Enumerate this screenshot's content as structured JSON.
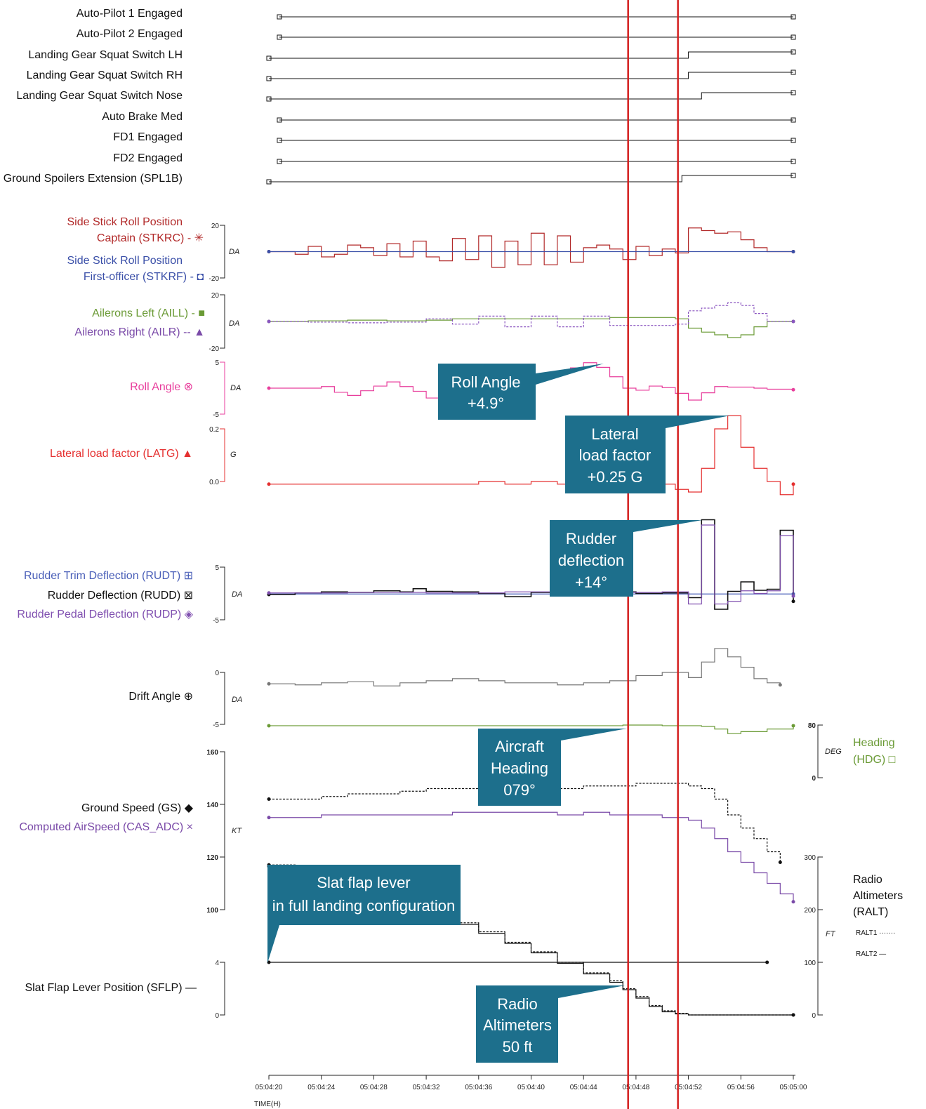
{
  "colors": {
    "black": "#111111",
    "gray": "#777777",
    "captain": "#b22a2a",
    "first_officer": "#3a4fa8",
    "aileron_left": "#6a9a35",
    "aileron_right": "#8a55c0",
    "roll": "#e83e9c",
    "lateral": "#e53030",
    "rudder_trim": "#4a5fb8",
    "rudder_pedal": "#8050b0",
    "heading": "#6a9a35",
    "cas": "#7a4aa8",
    "callout": "#1d6f8c",
    "marker": "#d42020"
  },
  "labels": {
    "ap1": "Auto-Pilot 1 Engaged",
    "ap2": "Auto-Pilot 2 Engaged",
    "lgl": "Landing Gear Squat Switch LH",
    "lgr": "Landing Gear Squat Switch RH",
    "lgn": "Landing Gear Squat Switch Nose",
    "ab": "Auto Brake Med",
    "fd1": "FD1 Engaged",
    "fd2": "FD2 Engaged",
    "spl": "Ground Spoilers Extension (SPL1B)",
    "stkrc_a": "Side Stick Roll Position",
    "stkrc_b": "Captain (STKRC)  - ✳",
    "stkrf_a": "Side Stick Roll Position",
    "stkrf_b": "First-officer (STKRF)  - ◘",
    "aill": "Ailerons Left (AILL)  - ■",
    "ailr": "Ailerons Right (AILR)  -- ▲",
    "roll": "Roll Angle ⊗",
    "latg": "Lateral load factor (LATG)  ▲",
    "rudt": "Rudder Trim Deflection (RUDT) ⊞",
    "rudd": "Rudder Deflection (RUDD) ⊠",
    "rudp": "Rudder Pedal Deflection (RUDP) ◈",
    "drift": "Drift Angle ⊕",
    "gs": "Ground Speed (GS) ◆",
    "cas": "Computed AirSpeed (CAS_ADC) ×",
    "sflp": "Slat Flap Lever Position (SFLP)  —",
    "hdg_a": "Heading",
    "hdg_b": "(HDG) □",
    "ralt_a": "Radio",
    "ralt_b": "Altimeters",
    "ralt_c": "(RALT)",
    "ralt1": "RALT1 ·······",
    "ralt2": "RALT2 —"
  },
  "units": {
    "da": "DA",
    "g": "G",
    "kt": "KT",
    "deg": "DEG",
    "ft": "FT"
  },
  "ticks": {
    "stk_hi": "20",
    "stk_lo": "-20",
    "ail_hi": "20",
    "ail_lo": "-20",
    "roll_hi": "5",
    "roll_lo": "-5",
    "lat_hi": "0.2",
    "lat_lo": "0.0",
    "rud_hi": "5",
    "rud_lo": "-5",
    "drift_hi": "0",
    "drift_lo": "-5",
    "spd_160": "160",
    "spd_140": "140",
    "spd_120": "120",
    "spd_100": "100",
    "sflp_4": "4",
    "sflp_0": "0",
    "hdg_80": "80",
    "hdg_0": "0",
    "ft_300": "300",
    "ft_200": "200",
    "ft_100": "100",
    "ft_0": "0"
  },
  "callouts": {
    "roll": [
      "Roll Angle",
      "+4.9°"
    ],
    "lateral": [
      "Lateral",
      "load factor",
      "+0.25 G"
    ],
    "rudder": [
      "Rudder",
      "deflection",
      "+14°"
    ],
    "heading": [
      "Aircraft",
      "Heading",
      "079°"
    ],
    "slat": [
      "Slat flap lever",
      "in full landing configuration"
    ],
    "ralt": [
      "Radio",
      "Altimeters",
      "50 ft"
    ]
  },
  "chart_data": {
    "type": "line",
    "title": "",
    "xlabel": "TIME(H)",
    "x_ticks": [
      "05:04:20",
      "05:04:24",
      "05:04:28",
      "05:04:32",
      "05:04:36",
      "05:04:40",
      "05:04:44",
      "05:04:48",
      "05:04:52",
      "05:04:56",
      "05:05:00"
    ],
    "x_range_s": [
      0,
      40
    ],
    "event_markers_s": [
      27.4,
      31.2
    ],
    "discretes": [
      {
        "name": "Auto-Pilot 1 Engaged",
        "transition_s": null
      },
      {
        "name": "Auto-Pilot 2 Engaged",
        "transition_s": null
      },
      {
        "name": "Landing Gear Squat Switch LH",
        "transition_s": 32.0
      },
      {
        "name": "Landing Gear Squat Switch RH",
        "transition_s": 32.0
      },
      {
        "name": "Landing Gear Squat Switch Nose",
        "transition_s": 33.0
      },
      {
        "name": "Auto Brake Med",
        "transition_s": null
      },
      {
        "name": "FD1 Engaged",
        "transition_s": null
      },
      {
        "name": "FD2 Engaged",
        "transition_s": null
      },
      {
        "name": "Ground Spoilers Extension (SPL1B)",
        "transition_s": 31.5
      }
    ],
    "series": [
      {
        "name": "STKRC",
        "unit": "DA",
        "range": [
          -20,
          20
        ],
        "t": [
          0,
          2,
          3,
          4,
          5,
          6,
          7,
          8,
          9,
          10,
          11,
          12,
          13,
          14,
          15,
          16,
          17,
          18,
          19,
          20,
          21,
          22,
          23,
          24,
          25,
          26,
          27,
          28,
          29,
          30,
          31,
          32,
          33,
          34,
          35,
          36,
          37,
          38,
          39,
          40
        ],
        "v": [
          0,
          -2,
          4,
          -4,
          -2,
          5,
          3,
          -3,
          6,
          -4,
          8,
          -4,
          -7,
          10,
          -6,
          12,
          -12,
          8,
          -10,
          14,
          -10,
          12,
          -8,
          3,
          5,
          2,
          -6,
          4,
          -3,
          2,
          -1,
          18,
          16,
          14,
          15,
          9,
          3,
          0,
          0,
          0
        ]
      },
      {
        "name": "STKRF",
        "unit": "DA",
        "range": [
          -20,
          20
        ],
        "t": [
          0,
          40
        ],
        "v": [
          0,
          0
        ]
      },
      {
        "name": "AILL",
        "unit": "DA",
        "range": [
          -20,
          20
        ],
        "t": [
          0,
          3,
          6,
          9,
          12,
          14,
          16,
          18,
          20,
          22,
          24,
          26,
          28,
          30,
          31,
          32,
          33,
          34,
          35,
          36,
          37,
          38,
          40
        ],
        "v": [
          0,
          0.5,
          1,
          0.5,
          1,
          2,
          2,
          2,
          2,
          2,
          2,
          3,
          3,
          3,
          2,
          -5,
          -8,
          -10,
          -12,
          -10,
          -4,
          0,
          0
        ]
      },
      {
        "name": "AILR",
        "unit": "DA",
        "range": [
          -20,
          20
        ],
        "t": [
          0,
          3,
          6,
          9,
          12,
          14,
          16,
          18,
          20,
          22,
          24,
          26,
          28,
          30,
          31,
          32,
          33,
          34,
          35,
          36,
          37,
          38,
          40
        ],
        "v": [
          0,
          -0.5,
          -1,
          -0.5,
          2,
          -2,
          4,
          -4,
          4,
          -4,
          4,
          -3,
          -3,
          -3,
          -2,
          8,
          10,
          12,
          14,
          12,
          6,
          0,
          0
        ]
      },
      {
        "name": "ROLL",
        "unit": "DA",
        "range": [
          -5,
          5
        ],
        "t": [
          0,
          2,
          3,
          4,
          5,
          6,
          7,
          8,
          9,
          10,
          11,
          12,
          13,
          14,
          15,
          16,
          17,
          18,
          19,
          20,
          21,
          22,
          23,
          24,
          25,
          26,
          27,
          28,
          29,
          30,
          31,
          32,
          33,
          34,
          35,
          36,
          37,
          38,
          40
        ],
        "v": [
          0,
          0,
          0,
          0.3,
          -0.8,
          -1.4,
          -0.5,
          0.4,
          1.2,
          0.3,
          -0.6,
          -1.9,
          -2.1,
          -1.1,
          -1.2,
          -0.8,
          -0.2,
          0.5,
          1.2,
          1.8,
          2.1,
          2.9,
          3.9,
          4.9,
          4.0,
          2.2,
          0.0,
          -0.4,
          0.4,
          0.1,
          -1.0,
          -2.3,
          -0.9,
          0.3,
          0.2,
          0.2,
          0.0,
          -0.2,
          -0.3
        ]
      },
      {
        "name": "LATG",
        "unit": "G",
        "range": [
          0.0,
          0.2
        ],
        "t": [
          0,
          2,
          4,
          6,
          8,
          10,
          12,
          14,
          16,
          18,
          20,
          22,
          24,
          26,
          28,
          30,
          31,
          32,
          33,
          34,
          35,
          36,
          37,
          38,
          39,
          40
        ],
        "v": [
          -0.01,
          -0.01,
          -0.01,
          -0.01,
          -0.01,
          -0.01,
          -0.01,
          -0.01,
          0.0,
          -0.01,
          0.0,
          -0.01,
          0.0,
          -0.01,
          0.0,
          -0.01,
          -0.03,
          -0.04,
          0.05,
          0.2,
          0.25,
          0.13,
          0.05,
          0.0,
          -0.05,
          -0.01
        ]
      },
      {
        "name": "RUDT",
        "unit": "DA",
        "range": [
          -5,
          5
        ],
        "t": [
          0,
          40
        ],
        "v": [
          -0.1,
          -0.1
        ]
      },
      {
        "name": "RUDD",
        "unit": "DA",
        "range": [
          -5,
          5
        ],
        "t": [
          0,
          2,
          4,
          6,
          8,
          10,
          11,
          12,
          14,
          16,
          18,
          20,
          22,
          24,
          26,
          28,
          30,
          32,
          33,
          34,
          35,
          36,
          37,
          38,
          39,
          40
        ],
        "v": [
          -0.2,
          0.1,
          0.3,
          0.2,
          0.5,
          0.3,
          0.9,
          0.4,
          0.3,
          0.0,
          -0.6,
          0.2,
          0.3,
          0.4,
          0.3,
          0.0,
          0.1,
          -0.8,
          14.0,
          -3.0,
          0.4,
          2.2,
          0.6,
          0.8,
          12.0,
          -1.5
        ]
      },
      {
        "name": "RUDP",
        "unit": "DA",
        "range": [
          -5,
          5
        ],
        "t": [
          0,
          6,
          12,
          18,
          24,
          30,
          32,
          33,
          34,
          35,
          36,
          37,
          38,
          39,
          40
        ],
        "v": [
          0.1,
          0.2,
          0.1,
          0.3,
          0.2,
          0.3,
          -2.0,
          13.0,
          -2.0,
          -1.5,
          0.5,
          0.0,
          0.5,
          11.0,
          -0.5
        ]
      },
      {
        "name": "DRIFT",
        "unit": "DA",
        "range": [
          -5,
          0
        ],
        "t": [
          0,
          2,
          4,
          6,
          8,
          10,
          12,
          14,
          16,
          18,
          20,
          22,
          24,
          26,
          28,
          30,
          32,
          33,
          34,
          35,
          36,
          37,
          38,
          39
        ],
        "v": [
          -1.1,
          -1.2,
          -1.0,
          -0.9,
          -1.3,
          -1.0,
          -0.8,
          -0.6,
          -0.8,
          -1.0,
          -1.0,
          -1.2,
          -1.0,
          -0.8,
          -0.3,
          0.0,
          -0.5,
          1.0,
          2.3,
          1.5,
          0.5,
          -0.6,
          -1.0,
          -1.2
        ]
      },
      {
        "name": "HDG",
        "unit": "DEG",
        "range": [
          0,
          80
        ],
        "t": [
          0,
          5,
          10,
          15,
          20,
          25,
          27,
          30,
          32,
          33,
          34,
          35,
          36,
          38,
          40
        ],
        "v": [
          79,
          79,
          79,
          79,
          79,
          79,
          80,
          79,
          79,
          78,
          74,
          67,
          70,
          74,
          79
        ]
      },
      {
        "name": "GS",
        "unit": "KT",
        "range": [
          100,
          160
        ],
        "t": [
          0,
          2,
          4,
          6,
          8,
          10,
          12,
          14,
          16,
          18,
          20,
          22,
          24,
          26,
          28,
          30,
          31,
          32,
          33,
          34,
          35,
          36,
          37,
          38,
          39
        ],
        "v": [
          142,
          142,
          143,
          144,
          144,
          145,
          146,
          146,
          146,
          146,
          146,
          146,
          147,
          147,
          148,
          148,
          148,
          147,
          146,
          142,
          136,
          131,
          127,
          122,
          118
        ]
      },
      {
        "name": "CAS_ADC",
        "unit": "KT",
        "range": [
          100,
          160
        ],
        "t": [
          0,
          2,
          4,
          6,
          8,
          10,
          12,
          14,
          16,
          18,
          20,
          22,
          24,
          26,
          28,
          30,
          31,
          32,
          33,
          34,
          35,
          36,
          37,
          38,
          39,
          40
        ],
        "v": [
          135,
          135,
          136,
          136,
          136,
          136,
          136,
          137,
          137,
          137,
          137,
          136,
          137,
          136,
          136,
          135,
          135,
          134,
          131,
          127,
          122,
          118,
          114,
          110,
          106,
          103
        ]
      },
      {
        "name": "SFLP",
        "unit": "-",
        "range": [
          0,
          4
        ],
        "t": [
          0,
          38
        ],
        "v": [
          4,
          4
        ]
      },
      {
        "name": "RALT1",
        "unit": "FT",
        "range": [
          0,
          300
        ],
        "t": [
          0,
          2,
          4,
          6,
          8,
          10,
          12,
          14,
          16,
          18,
          20,
          22,
          24,
          26,
          27,
          28,
          29,
          30,
          31,
          32,
          33,
          35,
          38,
          40
        ],
        "v": [
          285,
          270,
          258,
          240,
          222,
          205,
          190,
          175,
          158,
          138,
          120,
          100,
          80,
          65,
          50,
          35,
          18,
          8,
          3,
          0,
          0,
          0,
          0,
          0
        ]
      },
      {
        "name": "RALT2",
        "unit": "FT",
        "range": [
          0,
          300
        ],
        "t": [
          0,
          2,
          4,
          6,
          8,
          10,
          12,
          14,
          16,
          18,
          20,
          22,
          24,
          26,
          27,
          28,
          29,
          30,
          31,
          32,
          33,
          35,
          38,
          40
        ],
        "v": [
          282,
          268,
          255,
          238,
          220,
          203,
          188,
          172,
          155,
          136,
          118,
          98,
          78,
          62,
          48,
          32,
          16,
          6,
          2,
          0,
          0,
          0,
          0,
          0
        ]
      }
    ]
  }
}
